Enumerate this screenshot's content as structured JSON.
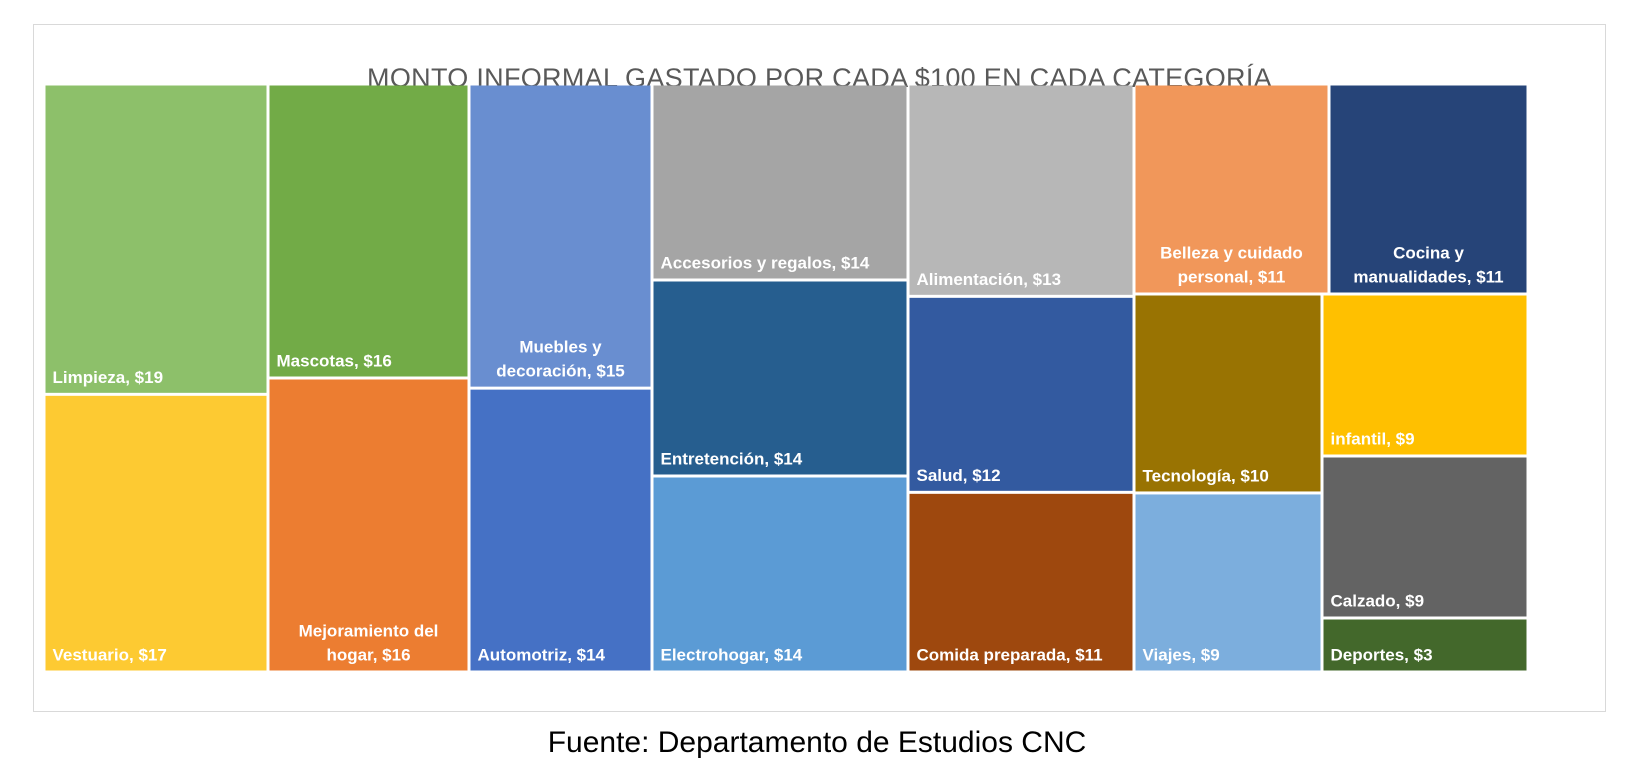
{
  "chart_data": {
    "type": "treemap",
    "title": "MONTO INFORMAL GASTADO POR CADA $100 EN CADA CATEGORÍA",
    "value_prefix": "$",
    "items": [
      {
        "name": "Limpieza",
        "label": "Limpieza,  $19",
        "value": 19,
        "color": "#8dc06a"
      },
      {
        "name": "Vestuario",
        "label": "Vestuario,  $17",
        "value": 17,
        "color": "#fdca32"
      },
      {
        "name": "Mascotas",
        "label": "Mascotas,  $16",
        "value": 16,
        "color": "#72ab47"
      },
      {
        "name": "Mejoramiento del hogar",
        "label": "Mejoramiento del hogar,  $16",
        "value": 16,
        "color": "#ec7d31"
      },
      {
        "name": "Muebles y decoración",
        "label": "Muebles y decoración,  $15",
        "value": 15,
        "color": "#698ed0"
      },
      {
        "name": "Automotriz",
        "label": "Automotriz,  $14",
        "value": 14,
        "color": "#4571c5"
      },
      {
        "name": "Accesorios y regalos",
        "label": "Accesorios y regalos,  $14",
        "value": 14,
        "color": "#a5a5a5"
      },
      {
        "name": "Entretención",
        "label": "Entretención,  $14",
        "value": 14,
        "color": "#265e8f"
      },
      {
        "name": "Electrohogar",
        "label": "Electrohogar,  $14",
        "value": 14,
        "color": "#5b9bd5"
      },
      {
        "name": "Alimentación",
        "label": "Alimentación,  $13",
        "value": 13,
        "color": "#b7b7b7"
      },
      {
        "name": "Salud",
        "label": "Salud,  $12",
        "value": 12,
        "color": "#335aa0"
      },
      {
        "name": "Comida preparada",
        "label": "Comida preparada,  $11",
        "value": 11,
        "color": "#9e480e"
      },
      {
        "name": "Belleza y cuidado personal",
        "label": "Belleza y cuidado personal,  $11",
        "value": 11,
        "color": "#f1975a"
      },
      {
        "name": "Tecnología",
        "label": "Tecnología,  $10",
        "value": 10,
        "color": "#997302"
      },
      {
        "name": "Viajes",
        "label": "Viajes,  $9",
        "value": 9,
        "color": "#7caedd"
      },
      {
        "name": "Cocina y manualidades",
        "label": "Cocina y manualidades,  $11",
        "value": 11,
        "color": "#264478"
      },
      {
        "name": "infantil",
        "label": "infantil,  $9",
        "value": 9,
        "color": "#ffc000"
      },
      {
        "name": "Calzado",
        "label": "Calzado,  $9",
        "value": 9,
        "color": "#636363"
      },
      {
        "name": "Deportes",
        "label": "Deportes,  $3",
        "value": 3,
        "color": "#43682b"
      }
    ]
  },
  "source": "Fuente: Departamento de Estudios CNC"
}
